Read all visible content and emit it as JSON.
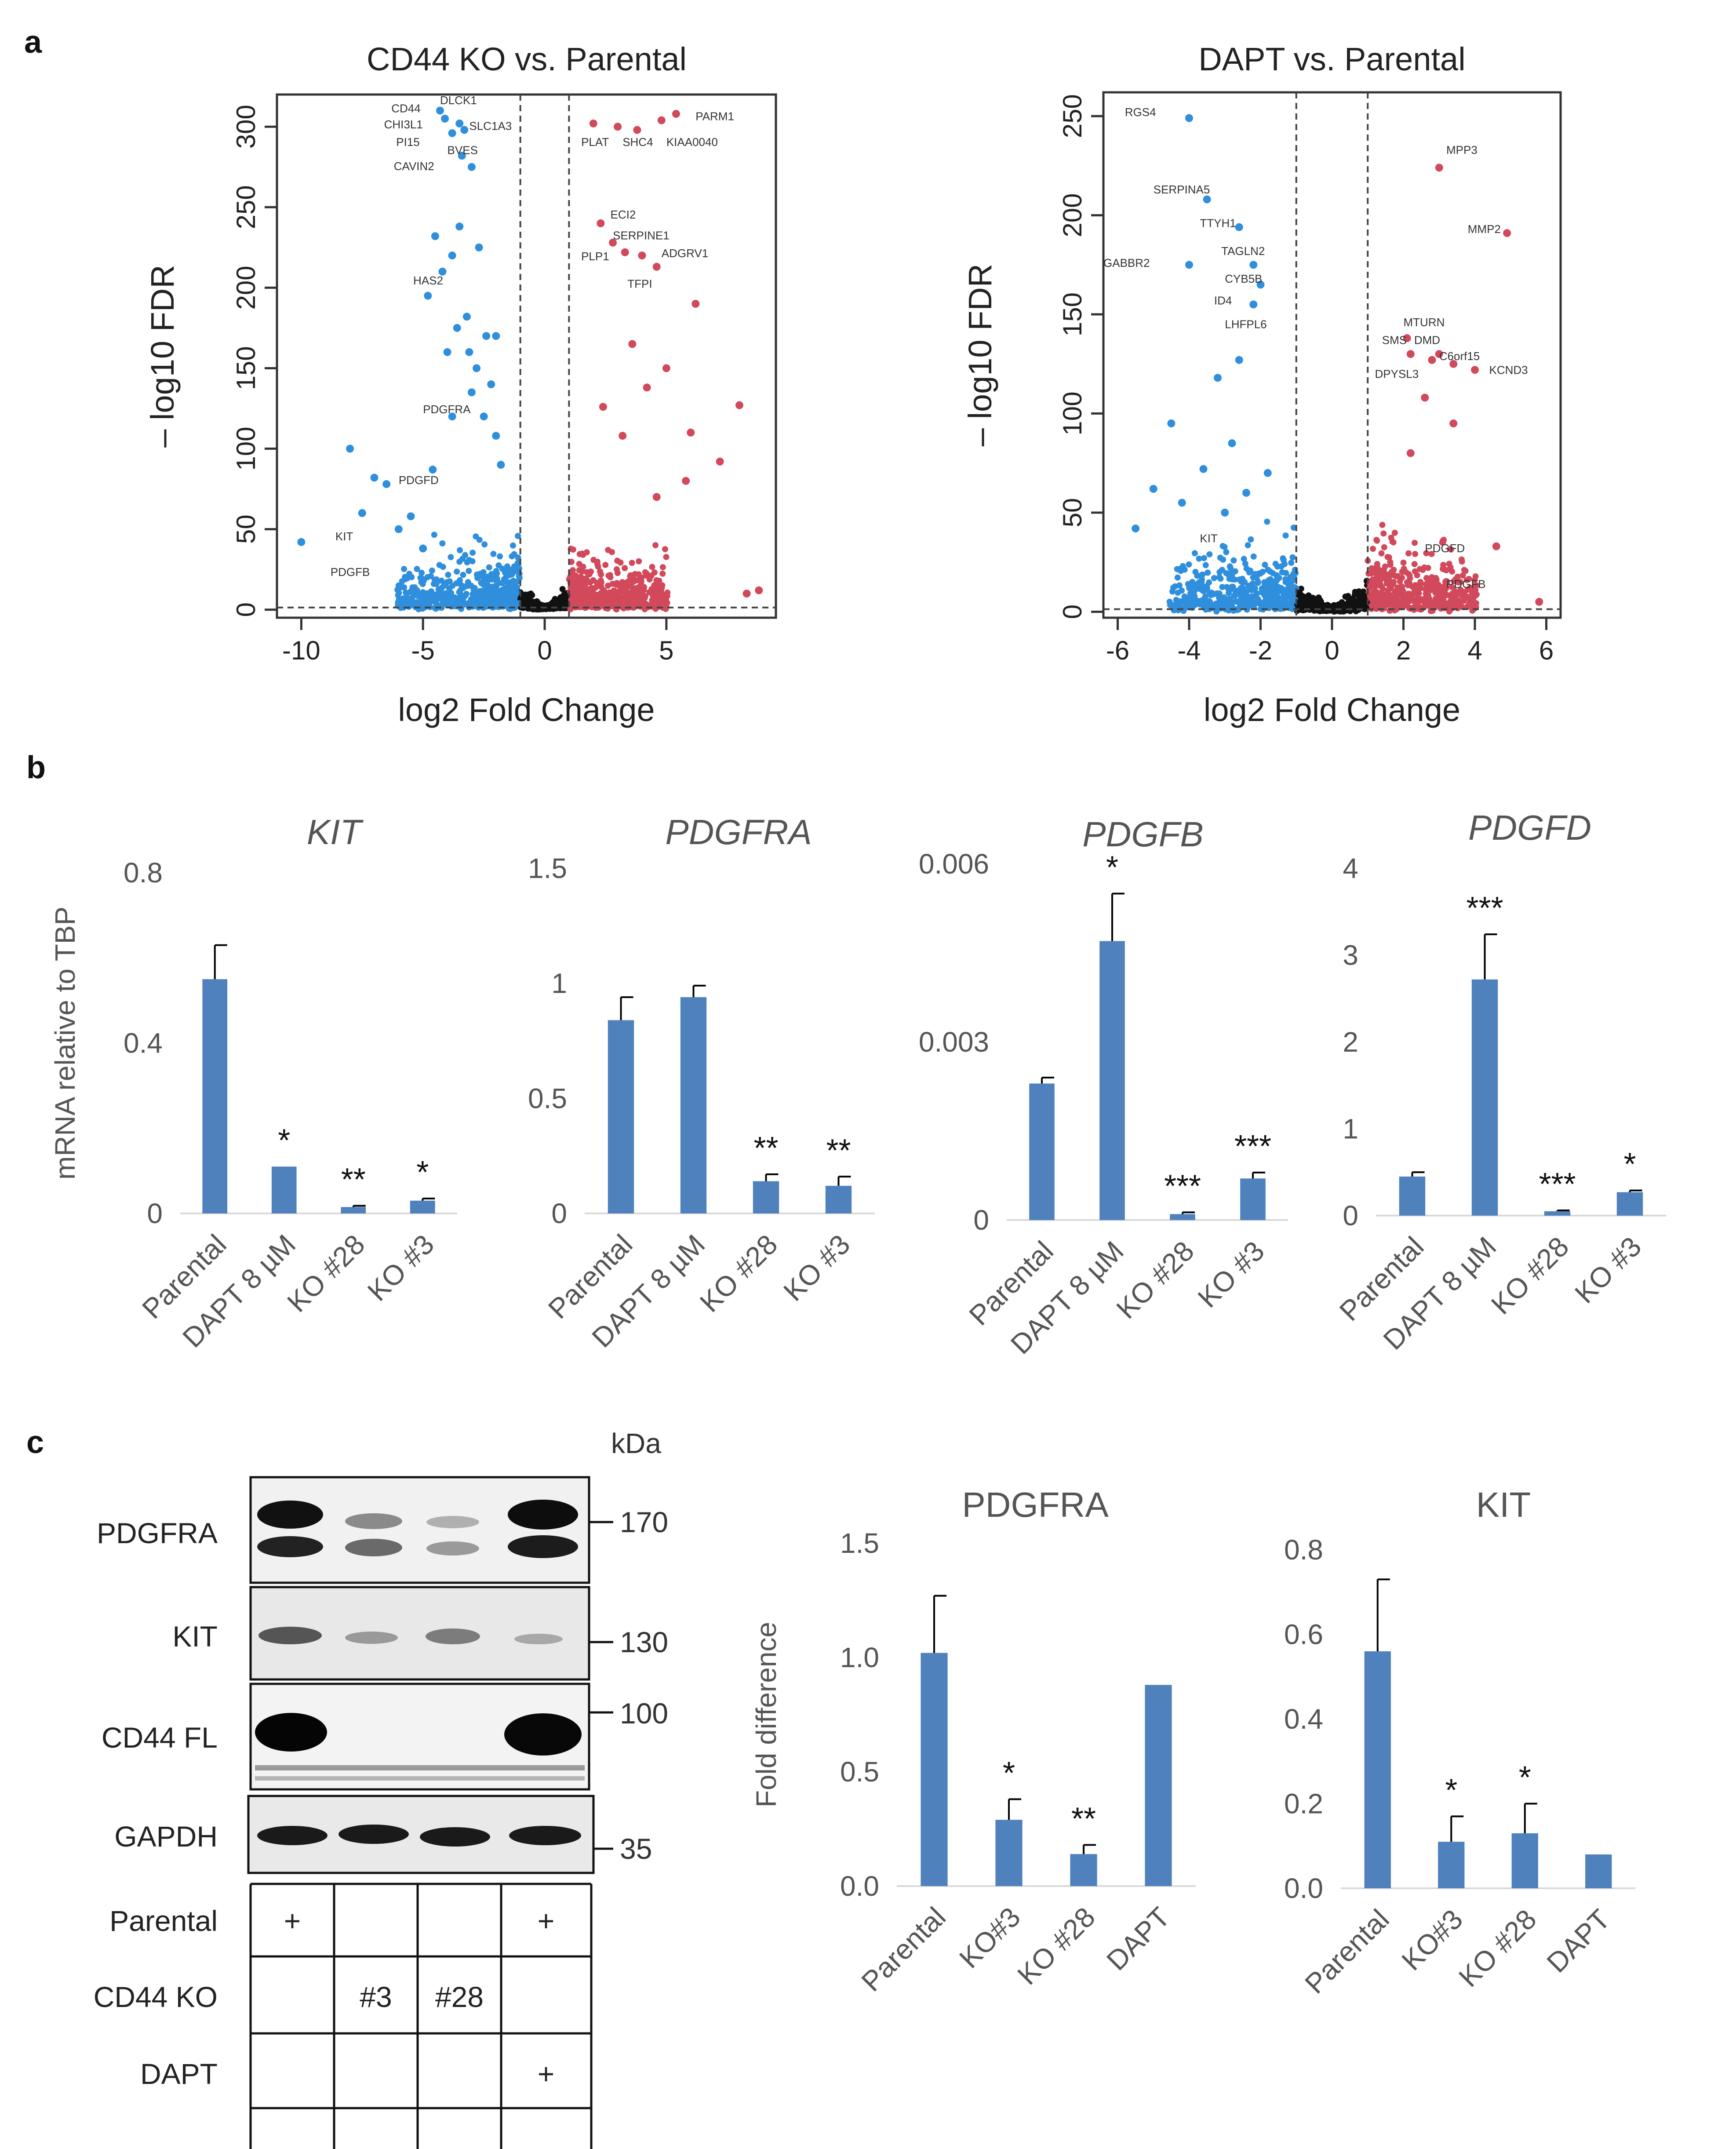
{
  "panel_labels": {
    "a": "a",
    "b": "b",
    "c": "c"
  },
  "colors": {
    "bar": "#4f81bd",
    "up": "#d1495b",
    "down": "#2f8fdd",
    "ns": "#111111",
    "axis": "#595959"
  },
  "chart_data": [
    {
      "type": "scatter",
      "id": "volcano1",
      "title": "CD44 KO vs. Parental",
      "xlabel": "log2 Fold Change",
      "ylabel": "– log10 FDR",
      "xlim": [
        -11,
        9.5
      ],
      "ylim": [
        -5,
        320
      ],
      "xticks": [
        -10,
        -5,
        0,
        5
      ],
      "yticks": [
        0,
        50,
        100,
        150,
        200,
        250,
        300
      ],
      "fc_threshold": 1,
      "points_down": [
        [
          -10,
          42
        ],
        [
          -8,
          100
        ],
        [
          -7,
          82
        ],
        [
          -7.5,
          60
        ],
        [
          -6,
          50
        ],
        [
          -6.5,
          78
        ],
        [
          -5.5,
          58
        ],
        [
          -5,
          38
        ],
        [
          -4.6,
          87
        ],
        [
          -3,
          275
        ],
        [
          -3.4,
          282
        ],
        [
          -4.8,
          195
        ],
        [
          -4.5,
          232
        ],
        [
          -4.2,
          210
        ],
        [
          -3.8,
          220
        ],
        [
          -3.6,
          175
        ],
        [
          -3.2,
          182
        ],
        [
          -3.1,
          160
        ],
        [
          -2.7,
          225
        ],
        [
          -3.5,
          238
        ],
        [
          -4,
          160
        ],
        [
          -2.4,
          170
        ],
        [
          -2.2,
          140
        ],
        [
          -2.8,
          150
        ],
        [
          -2.5,
          120
        ],
        [
          -2,
          108
        ],
        [
          -3.8,
          120
        ],
        [
          -2,
          170
        ],
        [
          -1.8,
          90
        ],
        [
          -3,
          135
        ],
        [
          -4.3,
          310
        ],
        [
          -3.5,
          302
        ],
        [
          -3.8,
          296
        ],
        [
          -4.1,
          305
        ],
        [
          -3.3,
          298
        ]
      ],
      "points_up": [
        [
          2.3,
          240
        ],
        [
          2.8,
          228
        ],
        [
          3.3,
          222
        ],
        [
          4,
          220
        ],
        [
          4.6,
          213
        ],
        [
          6.2,
          190
        ],
        [
          3,
          300
        ],
        [
          3.8,
          298
        ],
        [
          4.8,
          304
        ],
        [
          5.4,
          308
        ],
        [
          2,
          302
        ],
        [
          8,
          127
        ],
        [
          5,
          150
        ],
        [
          4.2,
          138
        ],
        [
          3.6,
          165
        ],
        [
          6,
          110
        ],
        [
          3.2,
          108
        ],
        [
          7.2,
          92
        ],
        [
          5.8,
          80
        ],
        [
          2.4,
          126
        ],
        [
          4.6,
          70
        ],
        [
          8.8,
          12
        ],
        [
          8.3,
          10
        ]
      ],
      "labels": [
        {
          "text": "CD44",
          "x": -6.3,
          "y": 309
        },
        {
          "text": "CHI3L1",
          "x": -6.6,
          "y": 299
        },
        {
          "text": "PI15",
          "x": -6.1,
          "y": 288
        },
        {
          "text": "CAVIN2",
          "x": -6.2,
          "y": 273
        },
        {
          "text": "DLCK1",
          "x": -4.3,
          "y": 314
        },
        {
          "text": "SLC1A3",
          "x": -3.1,
          "y": 298
        },
        {
          "text": "BVES",
          "x": -4.0,
          "y": 283
        },
        {
          "text": "HAS2",
          "x": -5.4,
          "y": 202
        },
        {
          "text": "PDGFRA",
          "x": -5.0,
          "y": 122
        },
        {
          "text": "PDGFD",
          "x": -6.0,
          "y": 78
        },
        {
          "text": "KIT",
          "x": -8.6,
          "y": 43
        },
        {
          "text": "PDGFB",
          "x": -8.8,
          "y": 21
        },
        {
          "text": "PLAT",
          "x": 1.5,
          "y": 288
        },
        {
          "text": "SHC4",
          "x": 3.2,
          "y": 288
        },
        {
          "text": "KIAA0040",
          "x": 5.0,
          "y": 288
        },
        {
          "text": "PARM1",
          "x": 6.2,
          "y": 304
        },
        {
          "text": "ECI2",
          "x": 2.7,
          "y": 243
        },
        {
          "text": "SERPINE1",
          "x": 2.8,
          "y": 230
        },
        {
          "text": "ADGRV1",
          "x": 4.8,
          "y": 219
        },
        {
          "text": "PLP1",
          "x": 1.5,
          "y": 217
        },
        {
          "text": "TFPI",
          "x": 3.4,
          "y": 200
        }
      ]
    },
    {
      "type": "scatter",
      "id": "volcano2",
      "title": "DAPT vs. Parental",
      "xlabel": "log2 Fold Change",
      "ylabel": "– log10 FDR",
      "xlim": [
        -6.4,
        6.4
      ],
      "ylim": [
        -3,
        262
      ],
      "xticks": [
        -6,
        -4,
        -2,
        0,
        2,
        4,
        6
      ],
      "yticks": [
        0,
        50,
        100,
        150,
        200,
        250
      ],
      "fc_threshold": 1,
      "points_down": [
        [
          -4,
          249
        ],
        [
          -3.5,
          208
        ],
        [
          -2.6,
          194
        ],
        [
          -4,
          175
        ],
        [
          -2.2,
          175
        ],
        [
          -2,
          165
        ],
        [
          -2.2,
          155
        ],
        [
          -2.6,
          127
        ],
        [
          -3.2,
          118
        ],
        [
          -4.5,
          95
        ],
        [
          -3.6,
          72
        ],
        [
          -5,
          62
        ],
        [
          -4.2,
          55
        ],
        [
          -5.5,
          42
        ],
        [
          -2.8,
          85
        ],
        [
          -2.4,
          60
        ],
        [
          -3,
          50
        ],
        [
          -1.8,
          70
        ]
      ],
      "points_up": [
        [
          3,
          224
        ],
        [
          4.9,
          191
        ],
        [
          2.1,
          138
        ],
        [
          3,
          130
        ],
        [
          2.8,
          127
        ],
        [
          3.4,
          125
        ],
        [
          4,
          122
        ],
        [
          2.2,
          130
        ],
        [
          2.6,
          108
        ],
        [
          3.4,
          95
        ],
        [
          2.2,
          80
        ],
        [
          4.6,
          33
        ],
        [
          3.2,
          15
        ],
        [
          5.8,
          5
        ]
      ],
      "labels": [
        {
          "text": "RGS4",
          "x": -5.8,
          "y": 250
        },
        {
          "text": "SERPINA5",
          "x": -5.0,
          "y": 211
        },
        {
          "text": "TTYH1",
          "x": -3.7,
          "y": 194
        },
        {
          "text": "GABBR2",
          "x": -6.4,
          "y": 174
        },
        {
          "text": "TAGLN2",
          "x": -3.1,
          "y": 180
        },
        {
          "text": "CYB5B",
          "x": -3.0,
          "y": 166
        },
        {
          "text": "ID4",
          "x": -3.3,
          "y": 155
        },
        {
          "text": "LHFPL6",
          "x": -3.0,
          "y": 143
        },
        {
          "text": "KIT",
          "x": -3.7,
          "y": 35
        },
        {
          "text": "MPP3",
          "x": 3.2,
          "y": 231
        },
        {
          "text": "MMP2",
          "x": 3.8,
          "y": 191
        },
        {
          "text": "MTURN",
          "x": 2.0,
          "y": 144
        },
        {
          "text": "SMS",
          "x": 1.4,
          "y": 135
        },
        {
          "text": "DMD",
          "x": 2.3,
          "y": 135
        },
        {
          "text": "C6orf15",
          "x": 3.0,
          "y": 127
        },
        {
          "text": "DPYSL3",
          "x": 1.2,
          "y": 118
        },
        {
          "text": "KCND3",
          "x": 4.4,
          "y": 120
        },
        {
          "text": "PDGFD",
          "x": 2.6,
          "y": 30
        },
        {
          "text": "PDGFB",
          "x": 3.2,
          "y": 12
        }
      ]
    },
    {
      "type": "bar",
      "id": "b_kit",
      "title": "KIT",
      "title_italic": true,
      "ylabel": "mRNA relative to TBP",
      "categories": [
        "Parental",
        "DAPT 8 µM",
        "KO #28",
        "KO #3"
      ],
      "values": [
        0.55,
        0.11,
        0.015,
        0.03
      ],
      "errors": [
        0.08,
        0.0,
        0.003,
        0.005
      ],
      "sig": [
        "",
        "*",
        "**",
        "*"
      ],
      "ylim": [
        0,
        0.8
      ],
      "tick_values": [
        0,
        0.4,
        0.8
      ],
      "tick_labels": [
        "0",
        "0.4",
        "0.8"
      ]
    },
    {
      "type": "bar",
      "id": "b_pdgfra",
      "title": "PDGFRA",
      "title_italic": true,
      "categories": [
        "Parental",
        "DAPT 8 µM",
        "KO #28",
        "KO #3"
      ],
      "values": [
        0.84,
        0.94,
        0.14,
        0.12
      ],
      "errors": [
        0.1,
        0.05,
        0.03,
        0.04
      ],
      "sig": [
        "",
        "",
        "**",
        "**"
      ],
      "ylim": [
        0,
        1.5
      ],
      "tick_values": [
        0,
        0.5,
        1,
        1.5
      ],
      "tick_labels": [
        "0",
        "0.5",
        "1",
        "1.5"
      ]
    },
    {
      "type": "bar",
      "id": "b_pdgfb",
      "title": "PDGFB",
      "title_italic": true,
      "categories": [
        "Parental",
        "DAPT 8 µM",
        "KO #28",
        "KO #3"
      ],
      "values": [
        0.0023,
        0.0047,
        0.0001,
        0.0007
      ],
      "errors": [
        0.0001,
        0.0008,
        3e-05,
        0.0001
      ],
      "sig": [
        "",
        "*",
        "***",
        "***"
      ],
      "ylim": [
        0,
        0.006
      ],
      "tick_values": [
        0,
        0.003,
        0.006
      ],
      "tick_labels": [
        "0",
        "0.003",
        "0.006"
      ]
    },
    {
      "type": "bar",
      "id": "b_pdgfd",
      "title": "PDGFD",
      "title_italic": true,
      "categories": [
        "Parental",
        "DAPT 8 µM",
        "KO #28",
        "KO #3"
      ],
      "values": [
        0.45,
        2.72,
        0.05,
        0.27
      ],
      "errors": [
        0.05,
        0.52,
        0.01,
        0.02
      ],
      "sig": [
        "",
        "***",
        "***",
        "*"
      ],
      "ylim": [
        0,
        4
      ],
      "tick_values": [
        0,
        1,
        2,
        3,
        4
      ],
      "tick_labels": [
        "0",
        "1",
        "2",
        "3",
        "4"
      ]
    },
    {
      "type": "bar",
      "id": "c_pdgfra",
      "title": "PDGFRA",
      "title_italic": false,
      "ylabel": "Fold difference",
      "categories": [
        "Parental",
        "KO#3",
        "KO #28",
        "DAPT"
      ],
      "values": [
        1.02,
        0.29,
        0.14,
        0.88
      ],
      "errors": [
        0.25,
        0.09,
        0.04,
        0.0
      ],
      "sig": [
        "",
        "*",
        "**",
        ""
      ],
      "ylim": [
        0,
        1.5
      ],
      "tick_values": [
        0,
        0.5,
        1,
        1.5
      ],
      "tick_labels": [
        "0.0",
        "0.5",
        "1.0",
        "1.5"
      ]
    },
    {
      "type": "bar",
      "id": "c_kit",
      "title": "KIT",
      "title_italic": false,
      "categories": [
        "Parental",
        "KO#3",
        "KO #28",
        "DAPT"
      ],
      "values": [
        0.56,
        0.11,
        0.13,
        0.08
      ],
      "errors": [
        0.17,
        0.06,
        0.07,
        0.0
      ],
      "sig": [
        "",
        "*",
        "*",
        ""
      ],
      "ylim": [
        0,
        0.8
      ],
      "tick_values": [
        0,
        0.2,
        0.4,
        0.6,
        0.8
      ],
      "tick_labels": [
        "0.0",
        "0.2",
        "0.4",
        "0.6",
        "0.8"
      ]
    }
  ],
  "western_blot": {
    "kda_header": "kDa",
    "rows": [
      {
        "label": "PDGFRA",
        "markers": [
          "170"
        ]
      },
      {
        "label": "KIT",
        "markers": [
          "130"
        ]
      },
      {
        "label": "CD44 FL",
        "markers": [
          "100"
        ]
      },
      {
        "label": "GAPDH",
        "markers": [
          "35"
        ]
      }
    ],
    "conditions": [
      {
        "label": "Parental",
        "cells": [
          "+",
          "",
          "",
          "+"
        ]
      },
      {
        "label": "CD44 KO",
        "cells": [
          "",
          "#3",
          "#28",
          ""
        ]
      },
      {
        "label": "DAPT",
        "cells": [
          "",
          "",
          "",
          "+"
        ]
      }
    ]
  }
}
